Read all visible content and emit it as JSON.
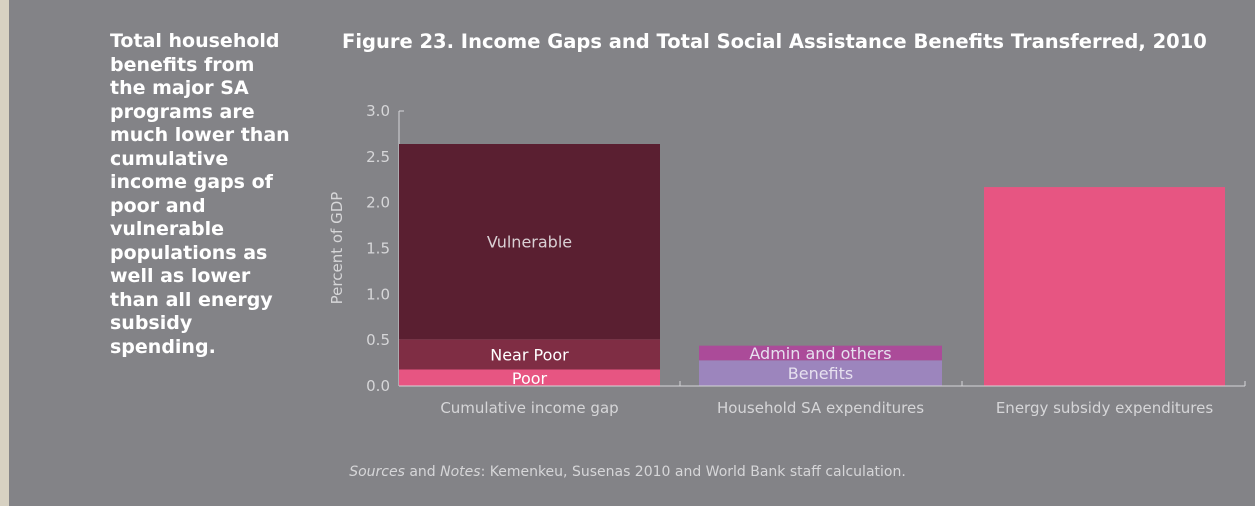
{
  "sidebar": {
    "text": "Total household benefits from the major SA programs are much lower than cumulative income gaps of poor and vulnerable populations as well as lower than all energy subsidy spending."
  },
  "footnote": {
    "label_1": "Sources",
    "connector": " and ",
    "label_2": "Notes",
    "text": ": Kemenkeu, Susenas 2010 and World Bank staff calculation."
  },
  "colors": {
    "panel": "#838387",
    "poor": "#e75582",
    "near_poor": "#7f2d44",
    "vulnerable": "#5a1f31",
    "benefits": "#9c85bd",
    "admin": "#ab4b99",
    "energy": "#e75582",
    "axis_text": "#d6d6d8"
  },
  "chart_data": {
    "type": "bar",
    "stacked": true,
    "title": "Figure 23. Income Gaps and Total Social Assistance Benefits Transferred, 2010",
    "xlabel": "",
    "ylabel": "Percent of GDP",
    "ylim": [
      0,
      3.0
    ],
    "yticks": [
      "0.0",
      "0.5",
      "1.0",
      "1.5",
      "2.0",
      "2.5",
      "3.0"
    ],
    "grid": false,
    "legend": "none",
    "categories": [
      "Cumulative income gap",
      "Household SA expenditures",
      "Energy subsidy expenditures"
    ],
    "series": [
      {
        "name": "Poor",
        "values": [
          0.18,
          null,
          null
        ],
        "color": "#e75582"
      },
      {
        "name": "Near Poor",
        "values": [
          0.33,
          null,
          null
        ],
        "color": "#7f2d44"
      },
      {
        "name": "Vulnerable",
        "values": [
          2.13,
          null,
          null
        ],
        "color": "#5a1f31"
      },
      {
        "name": "Benefits",
        "values": [
          null,
          0.28,
          null
        ],
        "color": "#9c85bd"
      },
      {
        "name": "Admin and others",
        "values": [
          null,
          0.16,
          null
        ],
        "color": "#ab4b99"
      },
      {
        "name": "",
        "values": [
          null,
          null,
          2.17
        ],
        "color": "#e75582"
      }
    ]
  }
}
